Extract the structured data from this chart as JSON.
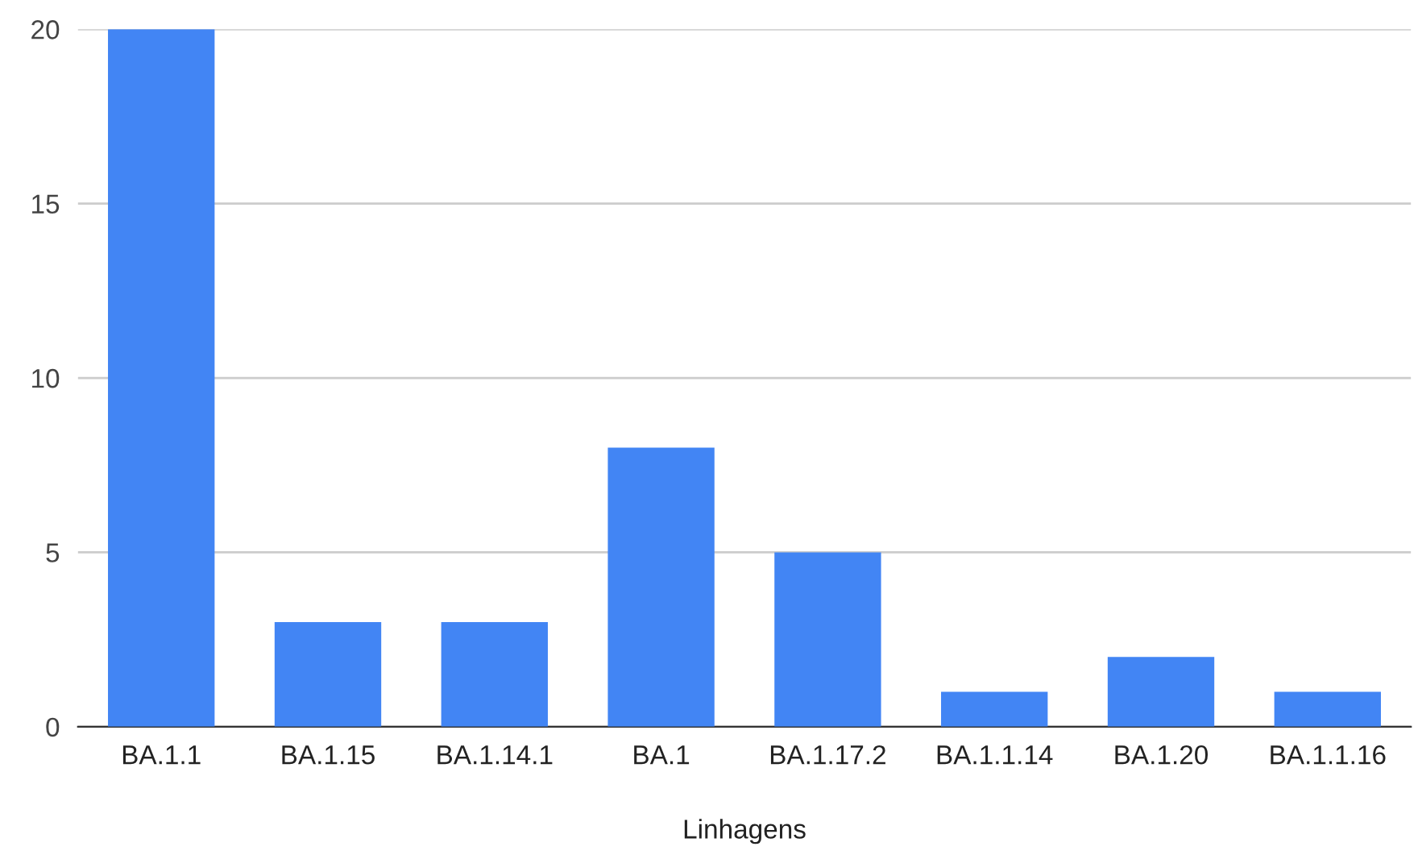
{
  "chart_data": {
    "type": "bar",
    "xlabel": "Linhagens",
    "categories": [
      "BA.1.1",
      "BA.1.15",
      "BA.1.14.1",
      "BA.1",
      "BA.1.17.2",
      "BA.1.1.14",
      "BA.1.20",
      "BA.1.1.16"
    ],
    "values": [
      20,
      3,
      3,
      8,
      5,
      1,
      2,
      1
    ],
    "color": "#4285f4",
    "ylim": [
      0,
      20
    ],
    "yticks": [
      0,
      5,
      10,
      15,
      20
    ],
    "grid": "y",
    "legend": false
  }
}
